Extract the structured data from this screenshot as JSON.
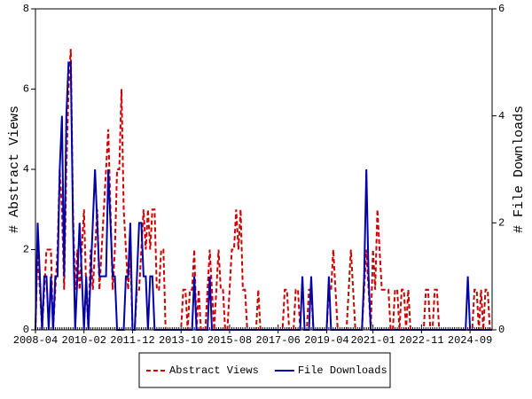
{
  "chart_data": {
    "type": "line",
    "y_label": "# Abstract Views",
    "y2_label": "# File Downloads",
    "categories": [
      "2008-04",
      null,
      null,
      null,
      null,
      null,
      null,
      null,
      null,
      null,
      null,
      null,
      null,
      null,
      null,
      null,
      null,
      null,
      null,
      null,
      null,
      null,
      "2010-02",
      null,
      null,
      null,
      null,
      null,
      null,
      null,
      null,
      null,
      null,
      null,
      null,
      null,
      null,
      null,
      null,
      null,
      null,
      null,
      null,
      null,
      "2011-12",
      null,
      null,
      null,
      null,
      null,
      null,
      null,
      null,
      null,
      null,
      null,
      null,
      null,
      null,
      null,
      null,
      null,
      null,
      null,
      null,
      null,
      "2013-10",
      null,
      null,
      null,
      null,
      null,
      null,
      null,
      null,
      null,
      null,
      null,
      null,
      null,
      null,
      null,
      null,
      null,
      null,
      null,
      null,
      null,
      "2015-08",
      null,
      null,
      null,
      null,
      null,
      null,
      null,
      null,
      null,
      null,
      null,
      null,
      null,
      null,
      null,
      null,
      null,
      null,
      null,
      null,
      null,
      "2017-06",
      null,
      null,
      null,
      null,
      null,
      null,
      null,
      null,
      null,
      null,
      null,
      null,
      null,
      null,
      null,
      null,
      null,
      null,
      null,
      null,
      null,
      "2019-04",
      null,
      null,
      null,
      null,
      null,
      null,
      null,
      null,
      null,
      null,
      null,
      null,
      null,
      null,
      null,
      null,
      null,
      null,
      null,
      null,
      "2021-01",
      null,
      null,
      null,
      null,
      null,
      null,
      null,
      null,
      null,
      null,
      null,
      null,
      null,
      null,
      null,
      null,
      null,
      null,
      null,
      null,
      null,
      "2022-11",
      null,
      null,
      null,
      null,
      null,
      null,
      null,
      null,
      null,
      null,
      null,
      null,
      null,
      null,
      null,
      null,
      null,
      null,
      null,
      null,
      null,
      "2024-09",
      null,
      null,
      null,
      null,
      null,
      null,
      null,
      null,
      null,
      null
    ],
    "series": [
      {
        "name": "Abstract Views",
        "color": "#cc0000",
        "dash": true,
        "values": [
          0,
          2,
          1,
          0,
          1,
          2,
          2,
          2,
          0,
          1,
          2,
          4,
          3,
          1,
          4,
          6,
          7,
          3,
          1,
          2,
          1,
          2,
          3,
          1,
          0,
          2,
          1,
          2,
          3,
          1,
          2,
          3,
          4,
          5,
          3,
          1,
          2,
          4,
          4,
          6,
          3,
          2,
          1,
          2,
          0,
          0,
          1,
          1,
          2,
          3,
          2,
          3,
          2,
          3,
          3,
          1,
          1,
          2,
          2,
          0,
          0,
          0,
          0,
          0,
          0,
          0,
          0,
          1,
          1,
          0,
          1,
          1,
          2,
          0,
          1,
          0,
          0,
          0,
          1,
          2,
          1,
          0,
          1,
          2,
          1,
          1,
          0,
          0,
          1,
          2,
          2,
          3,
          2,
          3,
          1,
          1,
          0,
          0,
          0,
          0,
          0,
          1,
          0,
          0,
          0,
          0,
          0,
          0,
          0,
          0,
          0,
          0,
          0,
          1,
          1,
          0,
          0,
          0,
          1,
          1,
          0,
          0,
          0,
          0,
          1,
          1,
          0,
          0,
          0,
          0,
          0,
          0,
          0,
          1,
          1,
          2,
          1,
          0,
          0,
          0,
          0,
          0,
          1,
          2,
          1,
          0,
          0,
          0,
          0,
          1,
          2,
          1,
          0,
          2,
          1,
          3,
          2,
          1,
          1,
          1,
          1,
          0,
          0,
          1,
          1,
          0,
          1,
          1,
          0,
          1,
          0,
          0,
          0,
          0,
          0,
          0,
          0,
          1,
          1,
          0,
          0,
          1,
          1,
          0,
          0,
          0,
          0,
          0,
          0,
          0,
          0,
          0,
          0,
          0,
          0,
          0,
          0,
          0,
          0,
          1,
          1,
          0,
          1,
          0,
          1,
          1,
          0,
          0
        ]
      },
      {
        "name": "File Downloads",
        "color": "#0000aa",
        "axis": "y2",
        "values": [
          0,
          2,
          1,
          0,
          1,
          1,
          0,
          1,
          0,
          1,
          1,
          3,
          4,
          1,
          4,
          5,
          5,
          2,
          0,
          1,
          2,
          1,
          0,
          1,
          0,
          1,
          2,
          3,
          2,
          1,
          1,
          1,
          1,
          3,
          2,
          1,
          1,
          0,
          0,
          0,
          0,
          1,
          1,
          2,
          0,
          0,
          1,
          2,
          2,
          1,
          1,
          0,
          1,
          1,
          0,
          0,
          0,
          0,
          0,
          0,
          0,
          0,
          0,
          0,
          0,
          0,
          0,
          0,
          0,
          0,
          0,
          0,
          1,
          0,
          0,
          0,
          0,
          0,
          0,
          1,
          0,
          0,
          0,
          0,
          0,
          0,
          0,
          0,
          0,
          0,
          0,
          0,
          0,
          0,
          0,
          0,
          0,
          0,
          0,
          0,
          0,
          0,
          0,
          0,
          0,
          0,
          0,
          0,
          0,
          0,
          0,
          0,
          0,
          0,
          0,
          0,
          0,
          0,
          0,
          0,
          0,
          1,
          0,
          0,
          0,
          1,
          0,
          0,
          0,
          0,
          0,
          0,
          0,
          1,
          0,
          0,
          0,
          0,
          0,
          0,
          0,
          0,
          0,
          0,
          0,
          0,
          0,
          0,
          0,
          1,
          3,
          1,
          0,
          0,
          0,
          0,
          0,
          0,
          0,
          0,
          0,
          0,
          0,
          0,
          0,
          0,
          0,
          0,
          0,
          0,
          0,
          0,
          0,
          0,
          0,
          0,
          0,
          0,
          0,
          0,
          0,
          0,
          0,
          0,
          0,
          0,
          0,
          0,
          0,
          0,
          0,
          0,
          0,
          0,
          0,
          0,
          1,
          0,
          0,
          0,
          0,
          0,
          0,
          0,
          0,
          0,
          0,
          0
        ]
      }
    ],
    "ylim": [
      0,
      8
    ],
    "yticks": [
      0,
      2,
      4,
      6,
      8
    ],
    "y2lim": [
      0,
      6
    ],
    "y2ticks": [
      0,
      2,
      4,
      6
    ],
    "legend": "bottom"
  }
}
